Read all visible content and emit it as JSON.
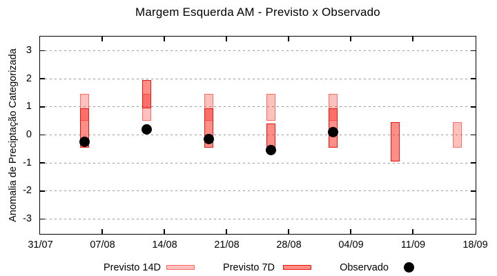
{
  "chart_data": {
    "type": "bar",
    "subtype": "forecast-range-boxes-with-observed-points",
    "title": "Margem Esquerda AM - Previsto x Observado",
    "ylabel": "Anomalia de Preciptação Categorizada",
    "xlabel": "",
    "x_tick_labels": [
      "31/07",
      "07/08",
      "14/08",
      "21/08",
      "28/08",
      "04/09",
      "11/09",
      "18/09"
    ],
    "x_tick_days": [
      0,
      7,
      14,
      21,
      28,
      35,
      42,
      49
    ],
    "xlim_days": [
      0,
      49
    ],
    "y_ticks": [
      3,
      2,
      1,
      0,
      -1,
      -2,
      -3
    ],
    "ylim": [
      -3.5,
      3.5
    ],
    "grid": "horizontal-dashed-gray",
    "legend_position": "bottom-outside",
    "bars": [
      {
        "day": 5,
        "previsto_14d": [
          0.5,
          1.45
        ],
        "previsto_7d": [
          -0.45,
          0.95
        ],
        "observado": -0.25
      },
      {
        "day": 12,
        "previsto_14d": [
          0.5,
          1.45
        ],
        "previsto_7d": [
          0.95,
          1.95
        ],
        "observado": 0.2
      },
      {
        "day": 19,
        "previsto_14d": [
          0.5,
          1.45
        ],
        "previsto_7d": [
          -0.45,
          0.95
        ],
        "observado": -0.15
      },
      {
        "day": 26,
        "previsto_14d": [
          0.5,
          1.45
        ],
        "previsto_7d": [
          -0.45,
          0.4
        ],
        "observado": -0.55
      },
      {
        "day": 33,
        "previsto_14d": [
          0.5,
          1.45
        ],
        "previsto_7d": [
          -0.45,
          0.95
        ],
        "observado": 0.1
      },
      {
        "day": 40,
        "previsto_14d": null,
        "previsto_7d": [
          -0.95,
          0.45
        ],
        "observado": null
      },
      {
        "day": 47,
        "previsto_14d": [
          -0.45,
          0.45
        ],
        "previsto_7d": null,
        "observado": null
      }
    ],
    "legend": {
      "items": [
        {
          "label": "Previsto 14D",
          "marker": "box-light-red"
        },
        {
          "label": "Previsto 7D",
          "marker": "box-dark-red"
        },
        {
          "label": "Observado",
          "marker": "black-dot"
        }
      ]
    },
    "colors": {
      "fill_14d": "rgba(255,30,20,0.28)",
      "border_14d": "rgba(255,30,20,0.52)",
      "fill_7d": "rgba(255,30,20,0.5)",
      "border_7d": "#e8150a",
      "observed": "#000000",
      "grid": "#9a9a9a",
      "axis": "#000000"
    }
  }
}
